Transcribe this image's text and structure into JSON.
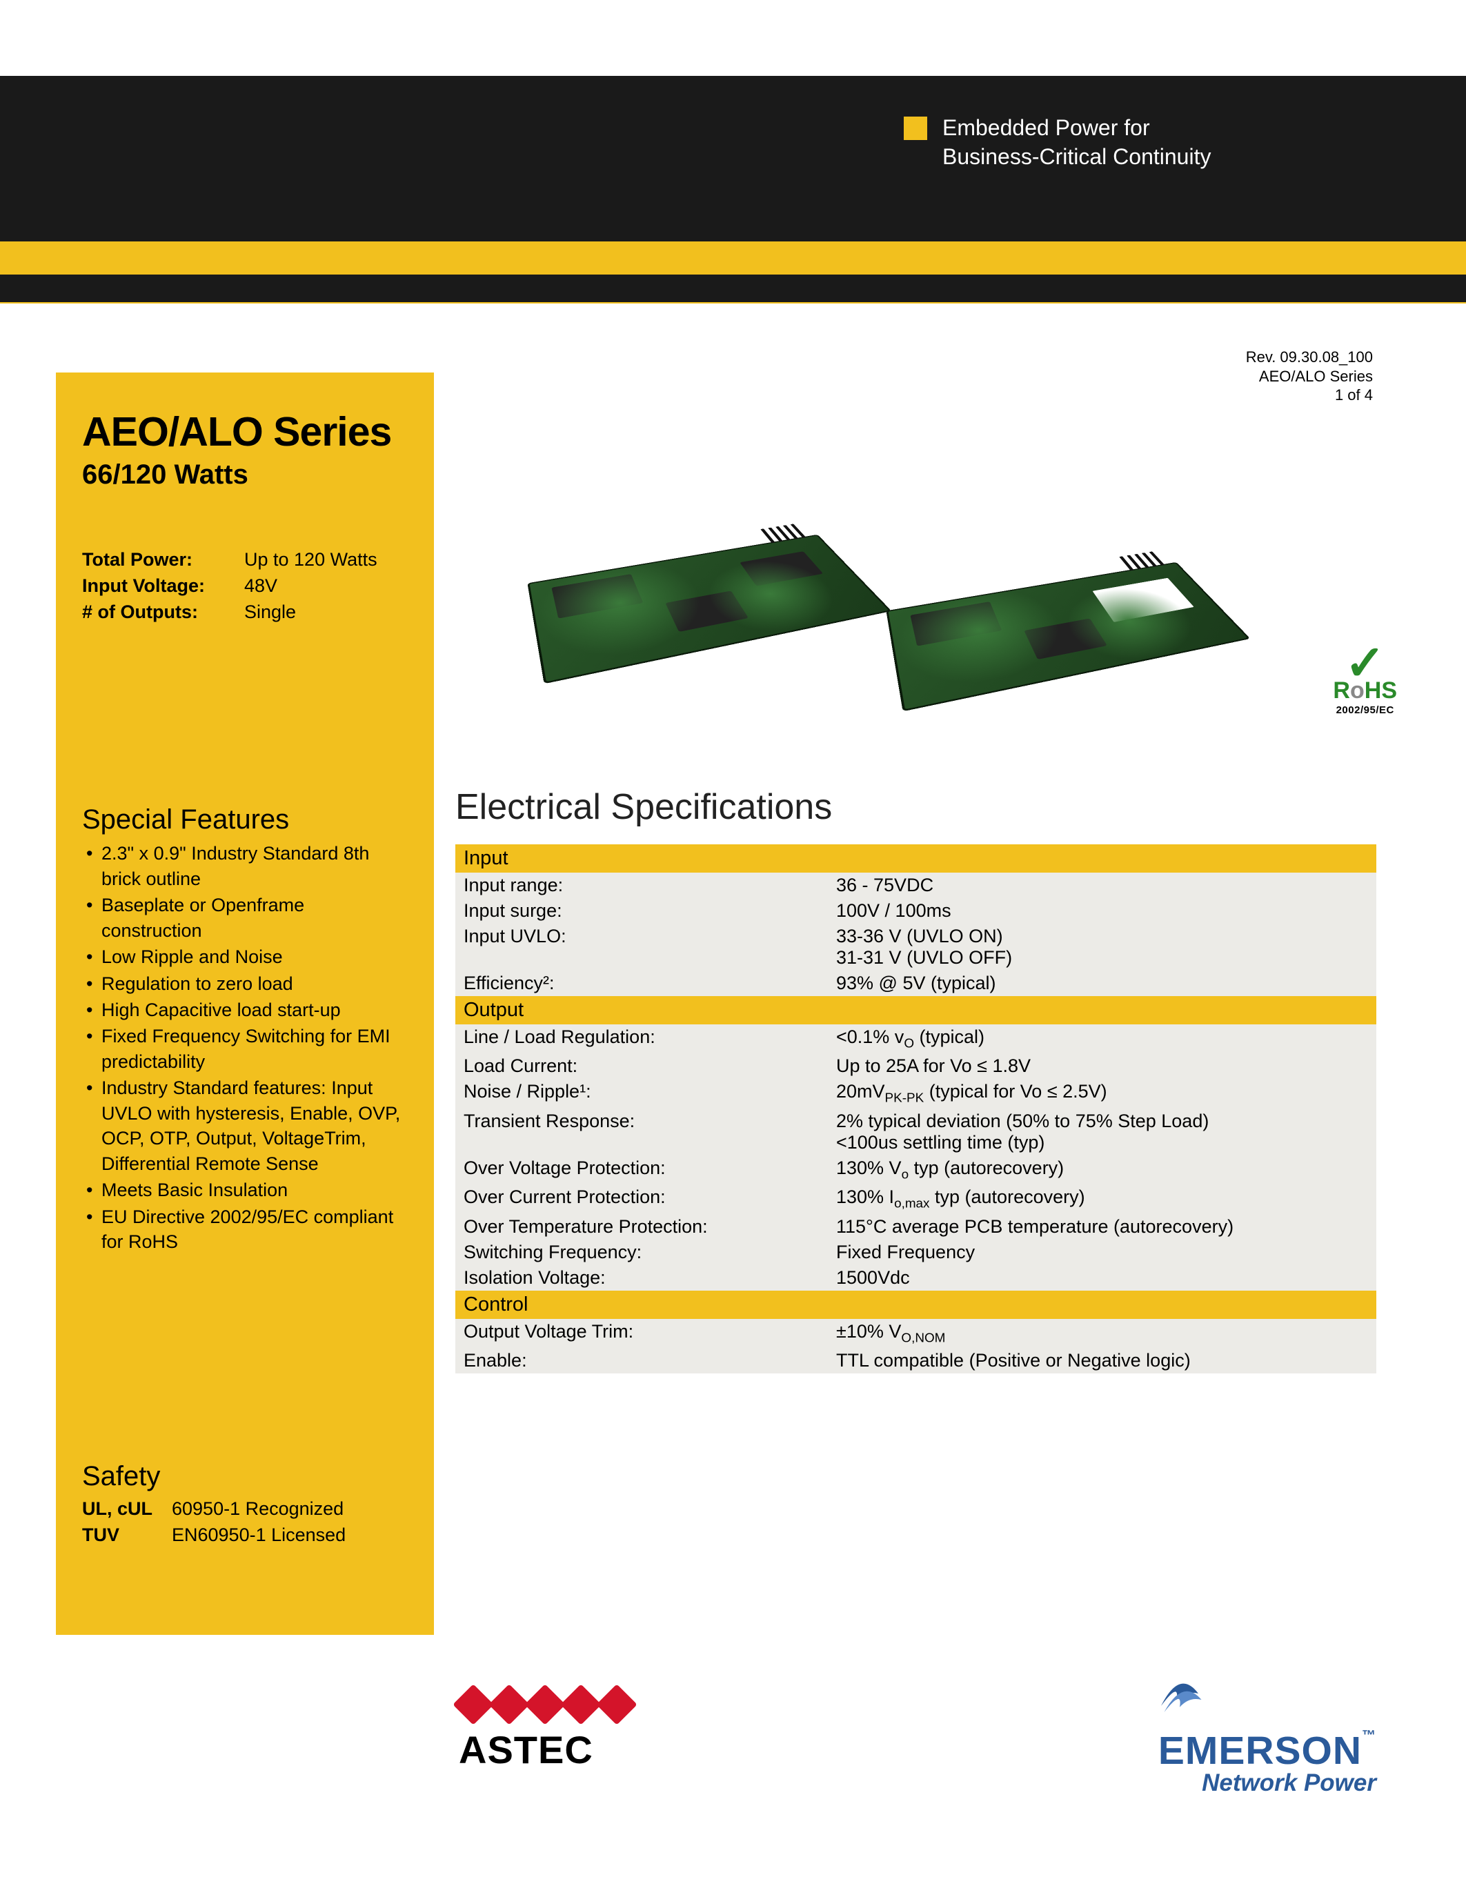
{
  "header": {
    "tagline_line1": "Embedded Power for",
    "tagline_line2": "Business-Critical Continuity",
    "tagline_square_color": "#f2c01e",
    "band_black": "#1a1a1a",
    "band_gold": "#f2c01e"
  },
  "rev": {
    "line1": "Rev. 09.30.08_100",
    "line2": "AEO/ALO Series",
    "line3": "1 of 4"
  },
  "sidebar": {
    "bg_color": "#f2c01e",
    "title": "AEO/ALO Series",
    "wattage": "66/120 Watts",
    "summary": [
      {
        "label": "Total Power:",
        "value": "Up to 120 Watts"
      },
      {
        "label": "Input Voltage:",
        "value": "48V"
      },
      {
        "label": "# of Outputs:",
        "value": "Single"
      }
    ],
    "features_title": "Special Features",
    "features": [
      "2.3\" x 0.9\" Industry Standard 8th brick outline",
      "Baseplate or Openframe construction",
      "Low Ripple and Noise",
      "Regulation to zero load",
      "High Capacitive load start-up",
      "Fixed Frequency Switching for EMI predictability",
      "Industry Standard features: Input UVLO with hysteresis, Enable, OVP, OCP, OTP, Output, VoltageTrim, Differential Remote Sense",
      "Meets Basic Insulation",
      "EU Directive 2002/95/EC compliant for RoHS"
    ],
    "safety_title": "Safety",
    "safety": [
      {
        "label": "UL, cUL",
        "value": "60950-1 Recognized"
      },
      {
        "label": "TUV",
        "value": "EN60950-1 Licensed"
      }
    ]
  },
  "rohs": {
    "check": "✓",
    "text_r": "R",
    "text_o": "o",
    "text_hs": "HS",
    "sub": "2002/95/EC",
    "green": "#2a8a2a",
    "grey": "#888888"
  },
  "specs": {
    "title": "Electrical Specifications",
    "header_bg": "#f2c01e",
    "row_bg": "#ecebe7",
    "sections": [
      {
        "name": "Input",
        "rows": [
          {
            "label": "Input range:",
            "value": "36 - 75VDC"
          },
          {
            "label": "Input surge:",
            "value": "100V / 100ms"
          },
          {
            "label": "Input UVLO:",
            "value": "33-36 V (UVLO ON)\n31-31 V (UVLO OFF)"
          },
          {
            "label": "Efficiency²:",
            "value": "93% @ 5V (typical)"
          }
        ]
      },
      {
        "name": "Output",
        "rows": [
          {
            "label": "Line / Load Regulation:",
            "value_html": "<0.1% v<span class='sub'>O</span> (typical)"
          },
          {
            "label": "Load Current:",
            "value_html": "Up to 25A for Vo ≤ 1.8V"
          },
          {
            "label": "Noise / Ripple¹:",
            "value_html": "20mV<span class='sub'>PK-PK</span> (typical for Vo ≤ 2.5V)"
          },
          {
            "label": "Transient Response:",
            "value_html": "2% typical deviation (50% to 75% Step Load)<br><100us settling time (typ)"
          },
          {
            "label": "Over Voltage Protection:",
            "value_html": "130% V<span class='sub'>o</span> typ (autorecovery)"
          },
          {
            "label": "Over Current Protection:",
            "value_html": "130% I<span class='sub'>o,max</span> typ (autorecovery)"
          },
          {
            "label": "Over Temperature Protection:",
            "value_html": "115°C average PCB temperature (autorecovery)"
          },
          {
            "label": "Switching Frequency:",
            "value_html": "Fixed Frequency"
          },
          {
            "label": "Isolation Voltage:",
            "value_html": "1500Vdc"
          }
        ]
      },
      {
        "name": "Control",
        "rows": [
          {
            "label": "Output Voltage Trim:",
            "value_html": "±10% V<span class='sub'>O,NOM</span>"
          },
          {
            "label": "Enable:",
            "value_html": "TTL compatible (Positive or Negative logic)"
          }
        ]
      }
    ]
  },
  "logos": {
    "astec": "ASTEC",
    "astec_red": "#d4142a",
    "emerson": "EMERSON",
    "emerson_tm": "™",
    "emerson_sub": "Network Power",
    "emerson_blue": "#2a5a9a"
  }
}
